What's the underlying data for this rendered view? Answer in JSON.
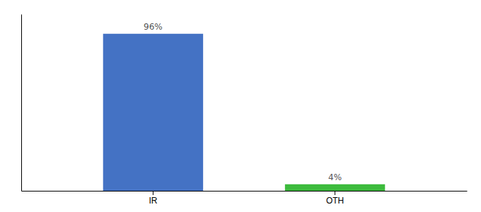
{
  "chart_data": {
    "type": "bar",
    "categories": [
      "IR",
      "OTH"
    ],
    "values": [
      96,
      4
    ],
    "value_labels": [
      "96%",
      "4%"
    ],
    "data_labels": true,
    "colors": [
      "#4472c4",
      "#3dbb3d"
    ],
    "ylim": [
      0,
      108
    ],
    "tick_labels": "x"
  }
}
